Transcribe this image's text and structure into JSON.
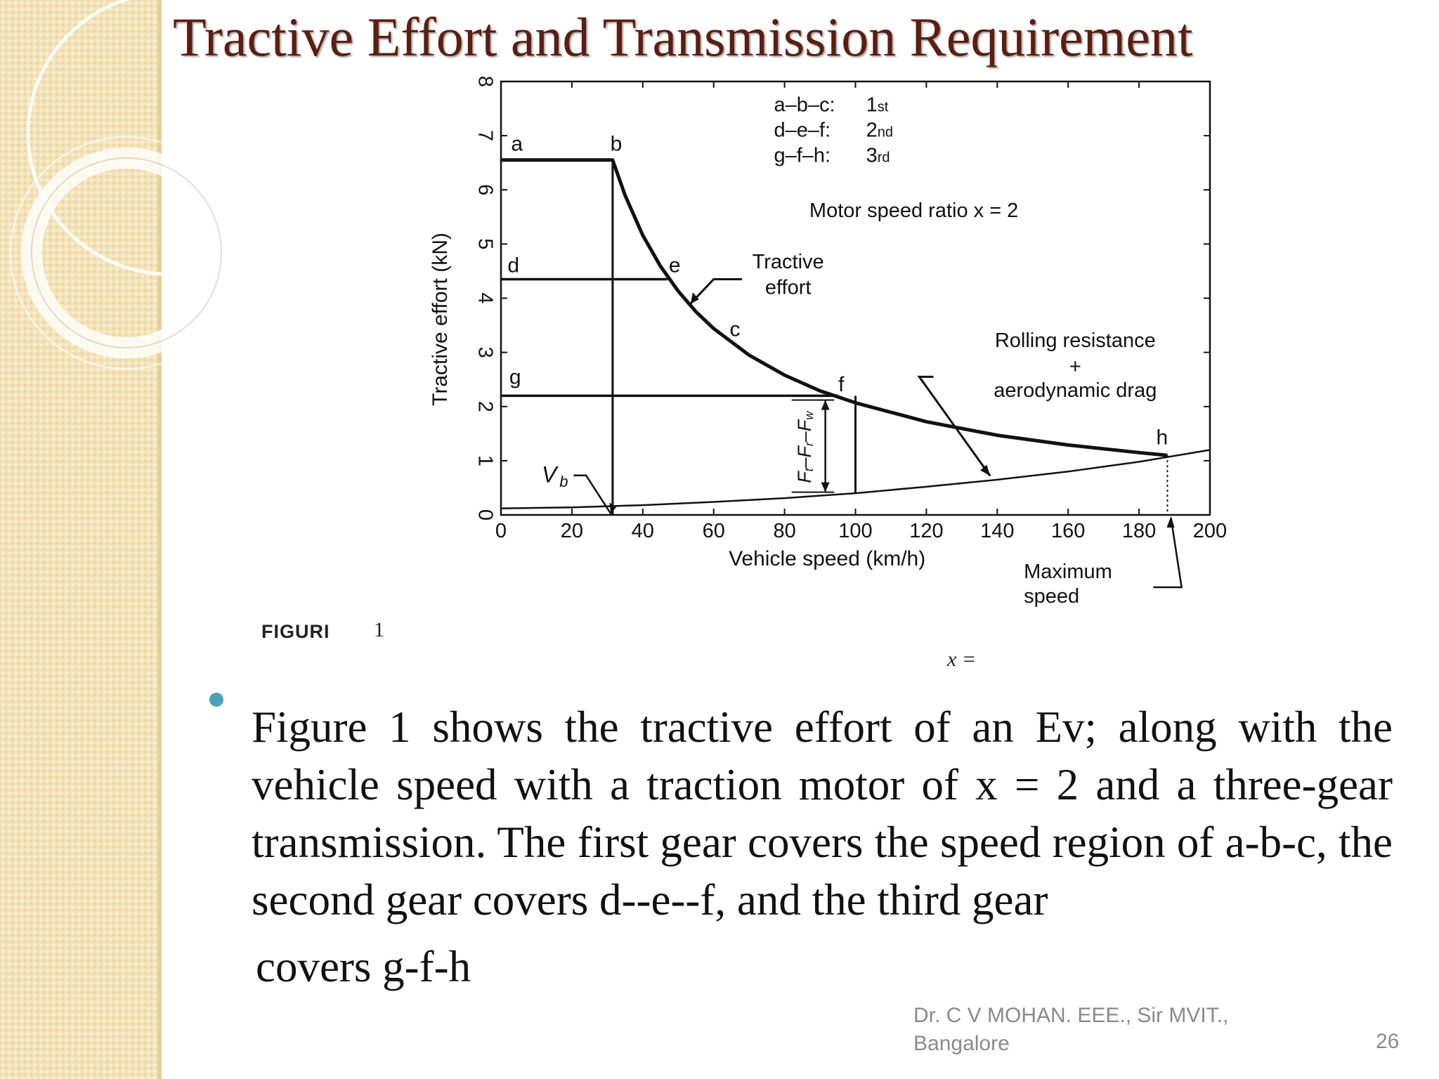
{
  "slide": {
    "title": "Tractive Effort and Transmission Requirement",
    "figure_label": "FIGURI",
    "figure_number": "1",
    "x_equals": "x =",
    "bullet_text": "Figure 1 shows the tractive effort of an Ev; along with the vehicle speed with a traction motor of x = 2 and a three-gear transmission. The first gear covers the speed region of a-b-c, the second gear covers d--e--f, and the third gear",
    "bullet_text_last": "covers g-f-h",
    "footer_credit": "Dr.  C V MOHAN.  EEE., Sir MVIT.,\nBangalore",
    "page_number": "26",
    "colors": {
      "title": "#5b1e10",
      "bullet": "#4aa3b5",
      "sidebar": "#f4e3b8",
      "footer": "#8a8a8a"
    }
  },
  "chart_data": {
    "type": "line",
    "xlabel": "Vehicle speed (km/h)",
    "ylabel": "Tractive effort (kN)",
    "xlim": [
      0,
      200
    ],
    "ylim": [
      0,
      8
    ],
    "x_ticks": [
      0,
      20,
      40,
      60,
      80,
      100,
      120,
      140,
      160,
      180,
      200
    ],
    "y_ticks": [
      0,
      1,
      2,
      3,
      4,
      5,
      6,
      7,
      8
    ],
    "legend_lines": [
      {
        "label": "a–b–c:",
        "gear": "1",
        "suffix": "st"
      },
      {
        "label": "d–e–f:",
        "gear": "2",
        "suffix": "nd"
      },
      {
        "label": "g–f–h:",
        "gear": "3",
        "suffix": "rd"
      }
    ],
    "motor_ratio_label": "Motor speed ratio x = 2",
    "series": [
      {
        "name": "Tractive effort",
        "points": [
          [
            0,
            6.55
          ],
          [
            31.5,
            6.55
          ],
          [
            35,
            5.9
          ],
          [
            40,
            5.16
          ],
          [
            45,
            4.59
          ],
          [
            50,
            4.13
          ],
          [
            55,
            3.75
          ],
          [
            60,
            3.44
          ],
          [
            70,
            2.95
          ],
          [
            80,
            2.58
          ],
          [
            90,
            2.29
          ],
          [
            100,
            2.07
          ],
          [
            120,
            1.72
          ],
          [
            140,
            1.47
          ],
          [
            160,
            1.29
          ],
          [
            180,
            1.15
          ],
          [
            188,
            1.1
          ]
        ]
      },
      {
        "name": "Rolling resistance + aerodynamic drag",
        "points": [
          [
            0,
            0.12
          ],
          [
            20,
            0.14
          ],
          [
            40,
            0.18
          ],
          [
            60,
            0.24
          ],
          [
            80,
            0.31
          ],
          [
            100,
            0.4
          ],
          [
            120,
            0.52
          ],
          [
            140,
            0.65
          ],
          [
            160,
            0.8
          ],
          [
            180,
            0.98
          ],
          [
            200,
            1.2
          ]
        ]
      }
    ],
    "gear_lines": [
      {
        "from": [
          0,
          6.55
        ],
        "to": [
          31.5,
          6.55
        ]
      },
      {
        "from": [
          0,
          4.35
        ],
        "to": [
          47,
          4.35
        ]
      },
      {
        "from": [
          0,
          2.2
        ],
        "to": [
          95,
          2.2
        ]
      }
    ],
    "vertical_lines": [
      {
        "x": 31.5,
        "y_from": 0,
        "y_to": 6.55
      },
      {
        "x": 100,
        "y_from": 0.4,
        "y_to": 2.2
      }
    ],
    "point_labels": [
      {
        "label": "a",
        "x": 4.5,
        "y": 6.72
      },
      {
        "label": "b",
        "x": 32.5,
        "y": 6.72
      },
      {
        "label": "c",
        "x": 66,
        "y": 3.3
      },
      {
        "label": "d",
        "x": 3.5,
        "y": 4.48
      },
      {
        "label": "e",
        "x": 49,
        "y": 4.48
      },
      {
        "label": "f",
        "x": 96,
        "y": 2.28
      },
      {
        "label": "g",
        "x": 4,
        "y": 2.42
      },
      {
        "label": "h",
        "x": 186.5,
        "y": 1.3
      }
    ],
    "annotations": {
      "tractive_effort": [
        "Tractive",
        "effort"
      ],
      "resistance": [
        "Rolling resistance",
        "+",
        "aerodynamic drag"
      ],
      "max_speed": [
        "Maximum",
        "speed"
      ],
      "vb": "V",
      "vb_sub": "b",
      "net_force": "F_t–F_r–F_w",
      "net_force_parts": [
        "F",
        "t",
        "–F",
        "r",
        "–F",
        "w"
      ]
    },
    "grid": false
  }
}
